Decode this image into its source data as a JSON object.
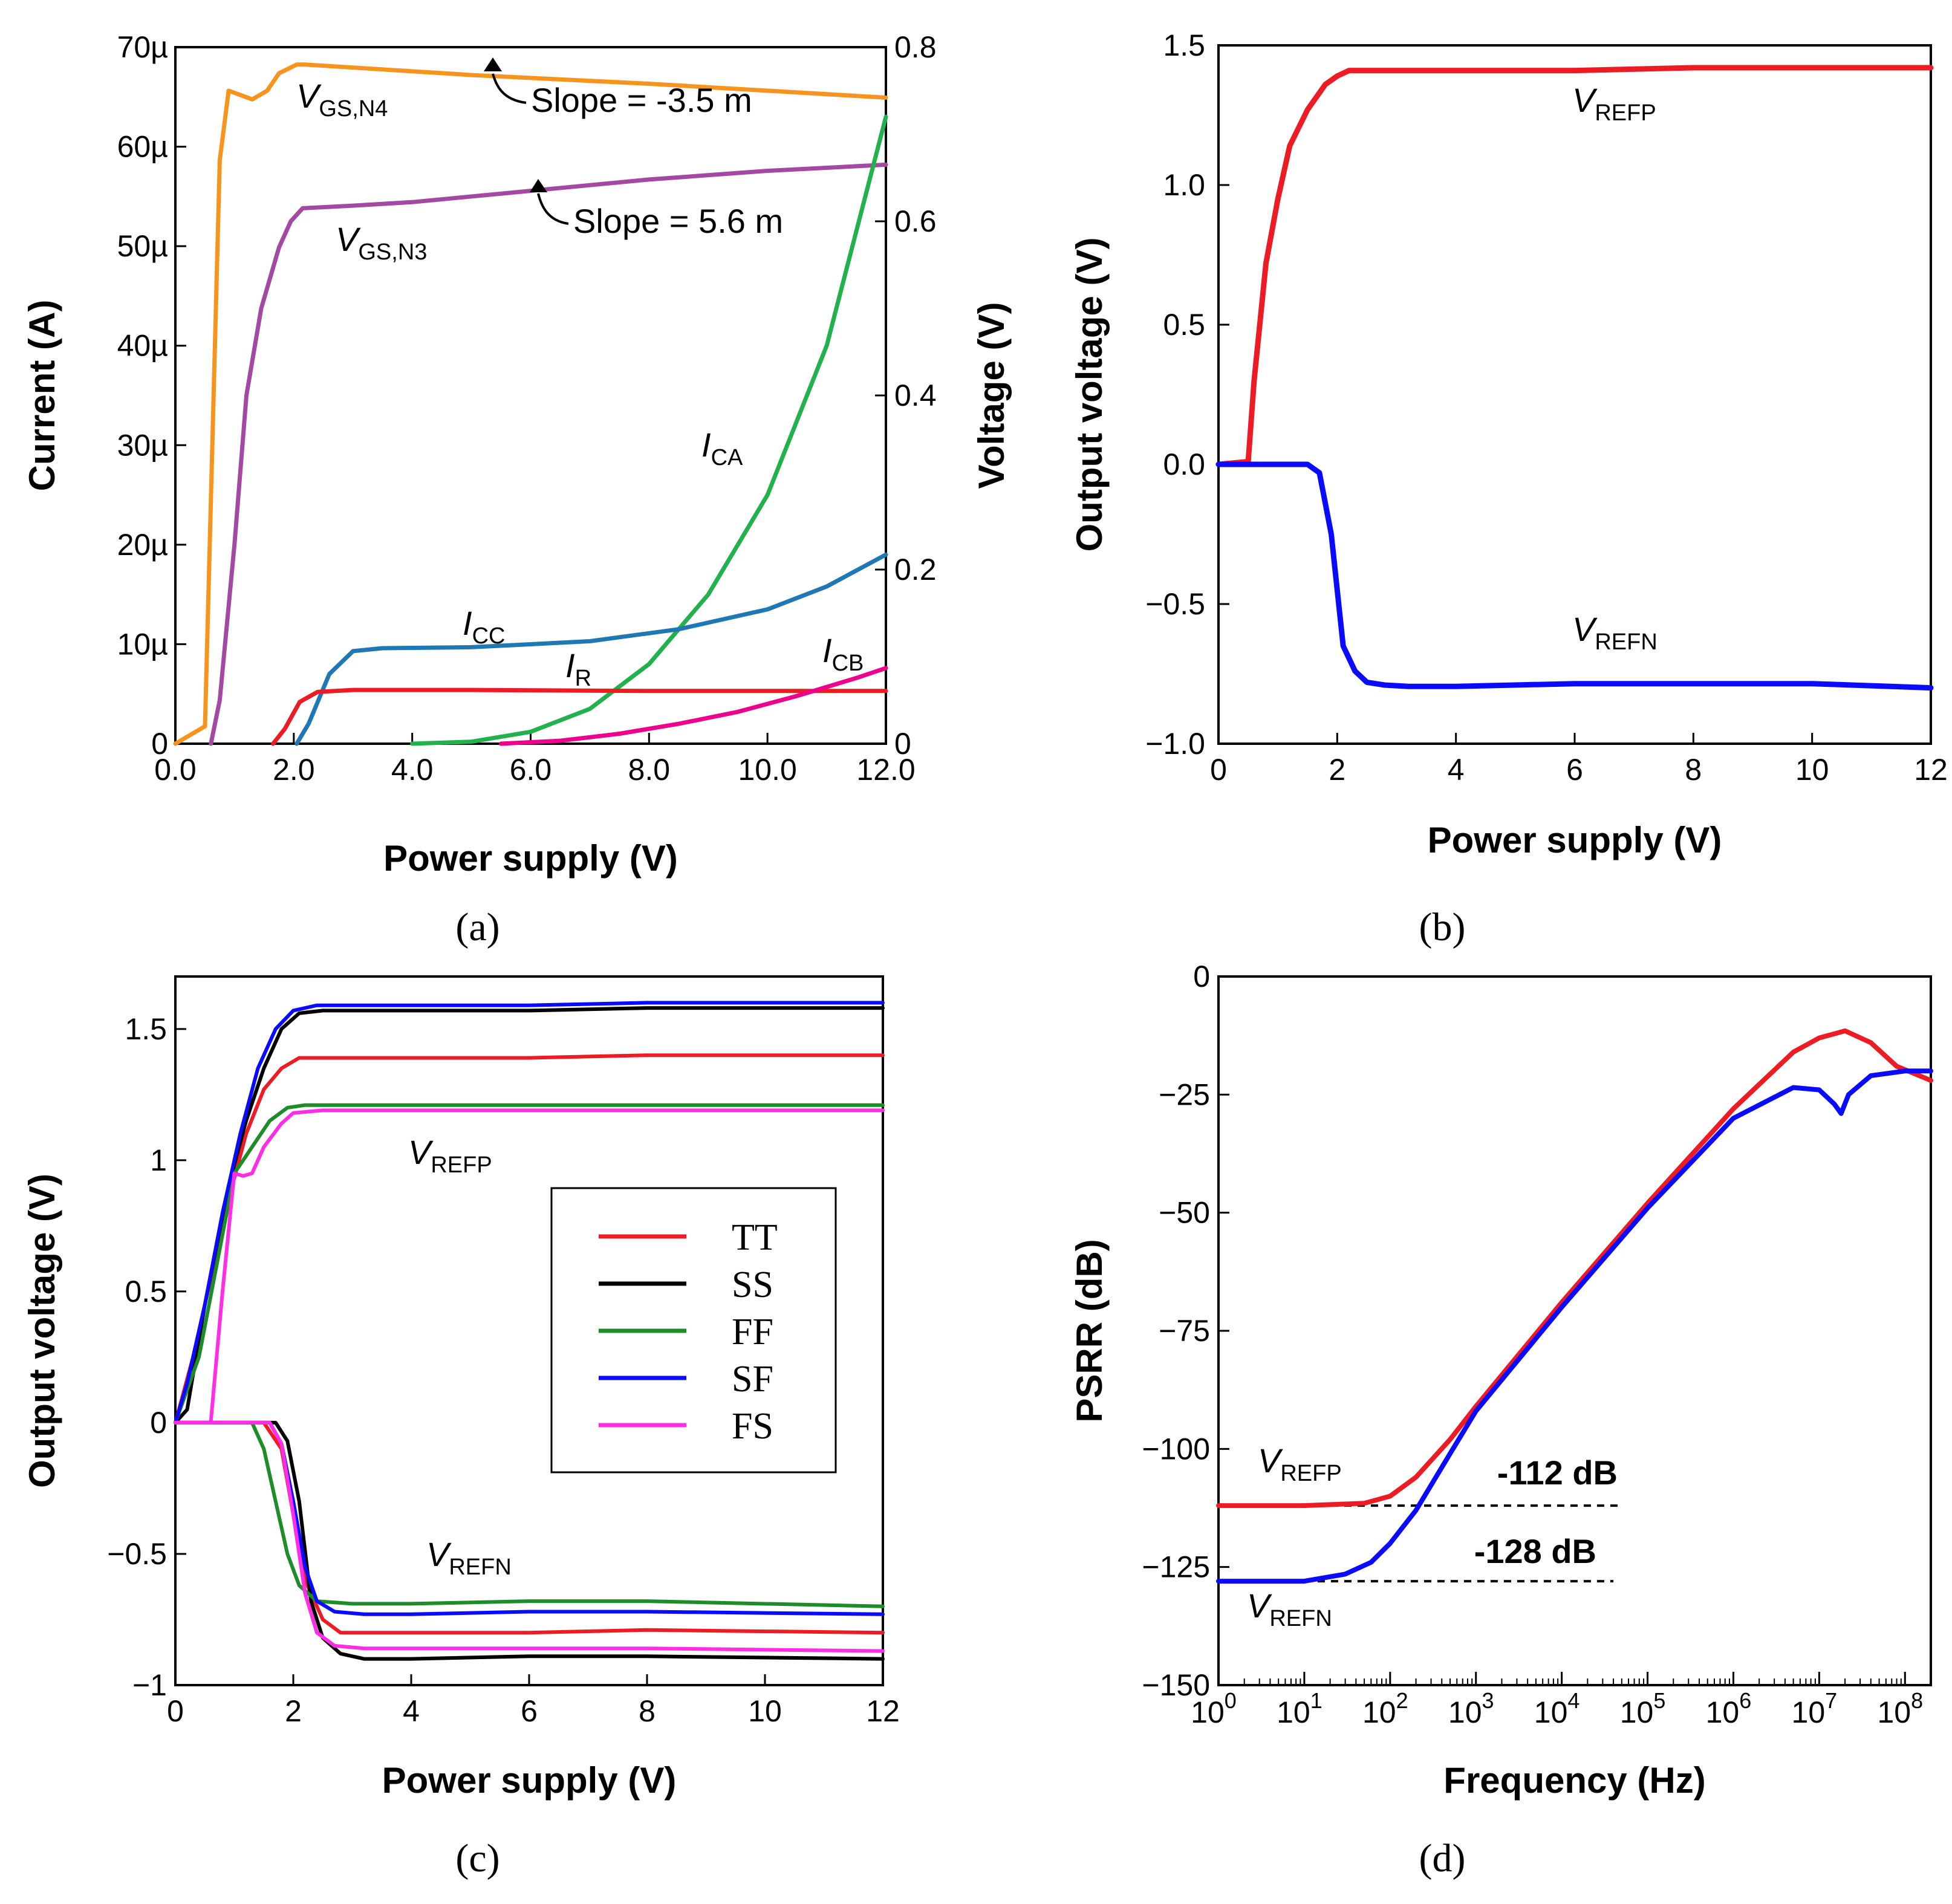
{
  "captions": [
    "(a)",
    "(b)",
    "(c)",
    "(d)"
  ],
  "chart_data": [
    {
      "id": "a",
      "type": "line",
      "xlabel": "Power supply (V)",
      "ylabel": "Current (A)",
      "y2label": "Voltage (V)",
      "xlim": [
        0,
        12
      ],
      "ylim": [
        0,
        70
      ],
      "y2lim": [
        0,
        0.8
      ],
      "x_ticks": [
        "0.0",
        "2.0",
        "4.0",
        "6.0",
        "8.0",
        "10.0",
        "12.0"
      ],
      "y_ticks": [
        "0",
        "10µ",
        "20µ",
        "30µ",
        "40µ",
        "50µ",
        "60µ",
        "70µ"
      ],
      "y2_ticks": [
        "0",
        "0.2",
        "0.4",
        "0.6",
        "0.8"
      ],
      "series": [
        {
          "name_main": "V",
          "name_sub": "GS,N4",
          "axis": "right",
          "color": "#f7941d",
          "x": [
            0,
            0.5,
            0.75,
            0.9,
            1.1,
            1.3,
            1.55,
            1.75,
            2.05,
            2.2,
            5,
            8,
            10,
            12
          ],
          "y": [
            0,
            0.02,
            0.67,
            0.75,
            0.745,
            0.74,
            0.75,
            0.77,
            0.78,
            0.78,
            0.768,
            0.758,
            0.75,
            0.742
          ]
        },
        {
          "name_main": "V",
          "name_sub": "GS,N3",
          "axis": "right",
          "color": "#a349a4",
          "x": [
            0.6,
            0.75,
            1.0,
            1.2,
            1.45,
            1.75,
            1.95,
            2.15,
            3,
            4,
            6,
            8,
            10,
            12
          ],
          "y": [
            0,
            0.05,
            0.23,
            0.4,
            0.5,
            0.57,
            0.6,
            0.615,
            0.618,
            0.622,
            0.635,
            0.648,
            0.658,
            0.665
          ]
        },
        {
          "name_main": "I",
          "name_sub": "CA",
          "axis": "left",
          "color": "#22b14c",
          "x": [
            4,
            5,
            6,
            7,
            8,
            9,
            10,
            11,
            12
          ],
          "y": [
            0,
            0.2,
            1.2,
            3.5,
            8,
            15,
            25,
            40,
            63
          ]
        },
        {
          "name_main": "I",
          "name_sub": "CC",
          "axis": "left",
          "color": "#1f77b4",
          "x": [
            2.05,
            2.25,
            2.6,
            3.0,
            3.5,
            5,
            7,
            8.5,
            10,
            11,
            12
          ],
          "y": [
            0,
            2,
            7,
            9.3,
            9.6,
            9.7,
            10.3,
            11.5,
            13.5,
            15.8,
            19
          ]
        },
        {
          "name_main": "I",
          "name_sub": "R",
          "axis": "left",
          "color": "#ed1c24",
          "x": [
            1.65,
            1.85,
            2.1,
            2.4,
            3,
            5,
            8,
            10,
            12
          ],
          "y": [
            0,
            1.5,
            4.2,
            5.2,
            5.4,
            5.4,
            5.3,
            5.3,
            5.3
          ]
        },
        {
          "name_main": "I",
          "name_sub": "CB",
          "axis": "left",
          "color": "#ec008c",
          "x": [
            5.5,
            6.5,
            7.5,
            8.5,
            9.5,
            10.5,
            11.5,
            12
          ],
          "y": [
            0,
            0.3,
            1.0,
            2.0,
            3.2,
            4.8,
            6.6,
            7.6
          ]
        }
      ],
      "annotations": [
        "Slope = -3.5 m",
        "Slope = 5.6 m"
      ]
    },
    {
      "id": "b",
      "type": "line",
      "xlabel": "Power supply (V)",
      "ylabel": "Output voltage (V)",
      "xlim": [
        0,
        12
      ],
      "ylim": [
        -1.0,
        1.5
      ],
      "x_ticks": [
        "0",
        "2",
        "4",
        "6",
        "8",
        "10",
        "12"
      ],
      "y_ticks": [
        "−1.0",
        "−0.5",
        "0.0",
        "0.5",
        "1.0",
        "1.5"
      ],
      "series": [
        {
          "name_main": "V",
          "name_sub": "REFP",
          "color": "#ed1c24",
          "x": [
            0,
            0.5,
            0.6,
            0.8,
            1.0,
            1.2,
            1.5,
            1.8,
            2.0,
            2.2,
            2.4,
            4,
            6,
            8,
            10,
            12
          ],
          "y": [
            0,
            0.01,
            0.3,
            0.72,
            0.95,
            1.14,
            1.27,
            1.36,
            1.39,
            1.41,
            1.41,
            1.41,
            1.41,
            1.42,
            1.42,
            1.42
          ]
        },
        {
          "name_main": "V",
          "name_sub": "REFN",
          "color": "#0a0aff",
          "x": [
            0,
            1.5,
            1.7,
            1.9,
            2.1,
            2.3,
            2.5,
            2.8,
            3.2,
            4,
            6,
            8,
            10,
            12
          ],
          "y": [
            0,
            0,
            -0.03,
            -0.25,
            -0.65,
            -0.74,
            -0.78,
            -0.79,
            -0.795,
            -0.795,
            -0.785,
            -0.785,
            -0.785,
            -0.8
          ]
        }
      ]
    },
    {
      "id": "c",
      "type": "line",
      "xlabel": "Power supply (V)",
      "ylabel": "Output voltage (V)",
      "xlim": [
        0,
        12
      ],
      "ylim": [
        -1,
        1.7
      ],
      "x_ticks": [
        "0",
        "2",
        "4",
        "6",
        "8",
        "10",
        "12"
      ],
      "y_ticks": [
        "−1",
        "−0.5",
        "0",
        "0.5",
        "1",
        "1.5"
      ],
      "labels": [
        {
          "main": "V",
          "sub": "REFP"
        },
        {
          "main": "V",
          "sub": "REFN"
        }
      ],
      "legend": [
        "TT",
        "SS",
        "FF",
        "SF",
        "FS"
      ],
      "legend_colors": [
        "#ed1c24",
        "#000000",
        "#1e8c28",
        "#0a0aff",
        "#ff2ee6"
      ],
      "series": [
        {
          "name": "TT",
          "color": "#ed1c24",
          "x": [
            0,
            0.3,
            0.6,
            0.9,
            1.2,
            1.5,
            1.8,
            2.1,
            3,
            6,
            8,
            12
          ],
          "y": [
            0,
            0.25,
            0.55,
            0.85,
            1.1,
            1.27,
            1.35,
            1.39,
            1.39,
            1.39,
            1.4,
            1.4
          ]
        },
        {
          "name": "TT",
          "color": "#ed1c24",
          "x": [
            0,
            1.5,
            1.8,
            2.0,
            2.2,
            2.5,
            2.8,
            3.5,
            6,
            8,
            12
          ],
          "y": [
            0,
            0,
            -0.1,
            -0.35,
            -0.6,
            -0.75,
            -0.8,
            -0.8,
            -0.8,
            -0.79,
            -0.8
          ]
        },
        {
          "name": "SS",
          "color": "#000000",
          "x": [
            0,
            0.2,
            0.5,
            0.9,
            1.2,
            1.5,
            1.8,
            2.1,
            2.5,
            4,
            6,
            8,
            12
          ],
          "y": [
            0,
            0.05,
            0.45,
            0.9,
            1.15,
            1.35,
            1.5,
            1.56,
            1.57,
            1.57,
            1.57,
            1.58,
            1.58
          ]
        },
        {
          "name": "SS",
          "color": "#000000",
          "x": [
            0,
            1.7,
            1.9,
            2.1,
            2.3,
            2.5,
            2.8,
            3.2,
            4,
            6,
            8,
            12
          ],
          "y": [
            0,
            0,
            -0.07,
            -0.3,
            -0.68,
            -0.82,
            -0.88,
            -0.9,
            -0.9,
            -0.89,
            -0.89,
            -0.9
          ]
        },
        {
          "name": "FF",
          "color": "#1e8c28",
          "x": [
            0,
            0.4,
            0.7,
            1.0,
            1.3,
            1.6,
            1.9,
            2.2,
            3,
            6,
            8,
            12
          ],
          "y": [
            0,
            0.25,
            0.6,
            0.95,
            1.05,
            1.15,
            1.2,
            1.21,
            1.21,
            1.21,
            1.21,
            1.21
          ]
        },
        {
          "name": "FF",
          "color": "#1e8c28",
          "x": [
            0,
            1.3,
            1.5,
            1.7,
            1.9,
            2.1,
            2.4,
            3,
            4,
            6,
            8,
            12
          ],
          "y": [
            0,
            0,
            -0.1,
            -0.3,
            -0.5,
            -0.62,
            -0.68,
            -0.69,
            -0.69,
            -0.68,
            -0.68,
            -0.7
          ]
        },
        {
          "name": "SF",
          "color": "#0a0aff",
          "x": [
            0,
            0.2,
            0.5,
            0.8,
            1.1,
            1.4,
            1.7,
            2.0,
            2.4,
            4,
            6,
            8,
            12
          ],
          "y": [
            0,
            0.15,
            0.45,
            0.8,
            1.1,
            1.35,
            1.5,
            1.57,
            1.59,
            1.59,
            1.59,
            1.6,
            1.6
          ]
        },
        {
          "name": "SF",
          "color": "#0a0aff",
          "x": [
            0,
            1.6,
            1.8,
            2.0,
            2.2,
            2.4,
            2.7,
            3.2,
            4,
            6,
            8,
            12
          ],
          "y": [
            0,
            0,
            -0.08,
            -0.3,
            -0.55,
            -0.68,
            -0.72,
            -0.73,
            -0.73,
            -0.72,
            -0.72,
            -0.73
          ]
        },
        {
          "name": "FS",
          "color": "#ff2ee6",
          "x": [
            0,
            0.6,
            0.8,
            1.0,
            1.15,
            1.3,
            1.5,
            1.8,
            2.0,
            2.5,
            4,
            6,
            8,
            12
          ],
          "y": [
            0,
            0,
            0.5,
            0.95,
            0.94,
            0.95,
            1.05,
            1.14,
            1.18,
            1.19,
            1.19,
            1.19,
            1.19,
            1.19
          ]
        },
        {
          "name": "FS",
          "color": "#ff2ee6",
          "x": [
            0,
            1.6,
            1.8,
            2.0,
            2.2,
            2.4,
            2.7,
            3.2,
            4,
            6,
            8,
            12
          ],
          "y": [
            0,
            0,
            -0.08,
            -0.35,
            -0.65,
            -0.8,
            -0.85,
            -0.86,
            -0.86,
            -0.86,
            -0.86,
            -0.87
          ]
        }
      ]
    },
    {
      "id": "d",
      "type": "line",
      "xscale": "log",
      "xlabel": "Frequency (Hz)",
      "ylabel": "PSRR (dB)",
      "xlim": [
        1,
        200000000
      ],
      "ylim": [
        -150,
        0
      ],
      "x_ticks_base": "10",
      "x_ticks_exp": [
        "0",
        "1",
        "2",
        "3",
        "4",
        "5",
        "6",
        "7",
        "8"
      ],
      "y_ticks": [
        "0",
        "−25",
        "−50",
        "−75",
        "−100",
        "−125",
        "−150"
      ],
      "reference_lines": [
        {
          "label": "-112 dB",
          "y": -112,
          "x_from": 10,
          "x_to": 50000
        },
        {
          "label": "-128 dB",
          "y": -128,
          "x_from": 10,
          "x_to": 40000
        }
      ],
      "labels": [
        {
          "main": "V",
          "sub": "REFP"
        },
        {
          "main": "V",
          "sub": "REFN"
        }
      ],
      "series": [
        {
          "name_main": "V",
          "name_sub": "REFP",
          "color": "#ed1c24",
          "x": [
            1,
            10,
            50,
            100,
            200,
            500,
            1000,
            10000,
            100000,
            1000000,
            5000000,
            10000000,
            20000000,
            40000000,
            80000000,
            200000000
          ],
          "y": [
            -112,
            -112,
            -111.5,
            -110,
            -106,
            -98,
            -91,
            -69,
            -48,
            -28,
            -16,
            -13,
            -11.5,
            -14,
            -19,
            -22
          ]
        },
        {
          "name_main": "V",
          "name_sub": "REFN",
          "color": "#0a0aff",
          "x": [
            1,
            10,
            30,
            60,
            100,
            200,
            500,
            1000,
            10000,
            100000,
            1000000,
            5000000,
            10000000,
            15000000,
            18000000,
            22000000,
            40000000,
            100000000,
            200000000
          ],
          "y": [
            -128,
            -128,
            -126.5,
            -124,
            -120,
            -113,
            -101,
            -92,
            -70,
            -49,
            -30,
            -23.5,
            -24,
            -27,
            -29,
            -25,
            -21,
            -20,
            -20
          ]
        }
      ]
    }
  ]
}
